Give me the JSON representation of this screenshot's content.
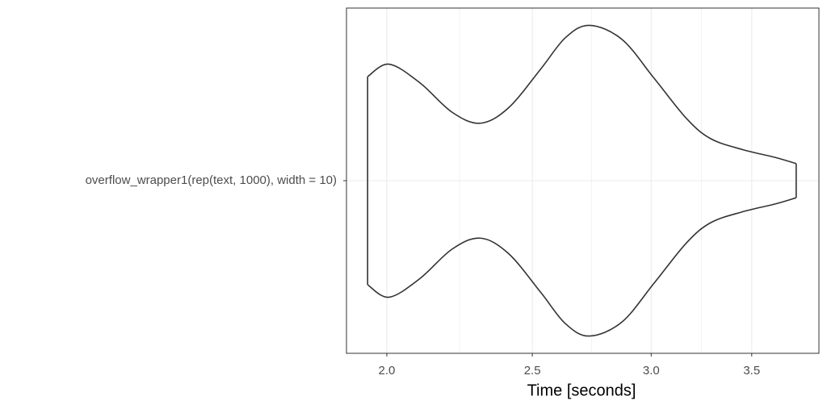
{
  "chart_data": {
    "type": "violin",
    "x_label": "Time [seconds]",
    "categories": [
      "overflow_wrapper1(rep(text, 1000), width = 10)"
    ],
    "x": [
      1.942,
      2.007,
      2.104,
      2.211,
      2.309,
      2.411,
      2.533,
      2.63,
      2.729,
      2.868,
      3.013,
      3.167,
      3.287,
      3.452,
      3.628,
      3.747
    ],
    "density": [
      0.67,
      0.75,
      0.63,
      0.44,
      0.37,
      0.47,
      0.72,
      0.92,
      1.0,
      0.91,
      0.66,
      0.4,
      0.27,
      0.2,
      0.15,
      0.11
    ],
    "color": "#333333",
    "xlim": [
      1.88,
      3.88
    ],
    "log_x": true,
    "xticks": [
      {
        "value": 2,
        "label": "2.0"
      },
      2.5,
      {
        "value": 3,
        "label": "3.0"
      },
      3.5
    ],
    "grid": true,
    "minor_grid": true
  }
}
